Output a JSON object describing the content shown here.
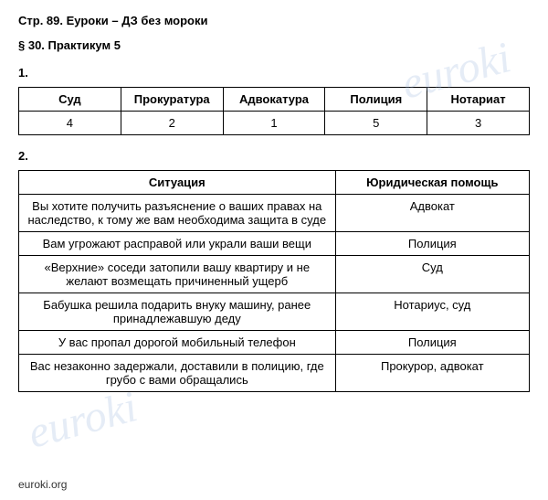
{
  "header": {
    "page_ref": "Стр. 89.",
    "site_name": "Еуроки – ДЗ без мороки"
  },
  "subtitle": "§ 30. Практикум 5",
  "section1": {
    "number": "1.",
    "headers": [
      "Суд",
      "Прокуратура",
      "Адвокатура",
      "Полиция",
      "Нотариат"
    ],
    "values": [
      "4",
      "2",
      "1",
      "5",
      "3"
    ]
  },
  "section2": {
    "number": "2.",
    "headers": [
      "Ситуация",
      "Юридическая помощь"
    ],
    "rows": [
      {
        "situation": "Вы хотите получить разъяснение о ваших правах на наследство, к тому же вам необходима защита в суде",
        "help": "Адвокат"
      },
      {
        "situation": "Вам угрожают расправой или украли ваши вещи",
        "help": "Полиция"
      },
      {
        "situation": "«Верхние» соседи затопили вашу квартиру и не желают возмещать причиненный ущерб",
        "help": "Суд"
      },
      {
        "situation": "Бабушка решила подарить внуку машину, ранее принадлежавшую деду",
        "help": "Нотариус, суд"
      },
      {
        "situation": "У вас пропал дорогой мобильный телефон",
        "help": "Полиция"
      },
      {
        "situation": "Вас незаконно задержали, доставили в полицию, где грубо с вами обращались",
        "help": "Прокурор, адвокат"
      }
    ]
  },
  "footer": "euroki.org",
  "watermark": "euroki"
}
